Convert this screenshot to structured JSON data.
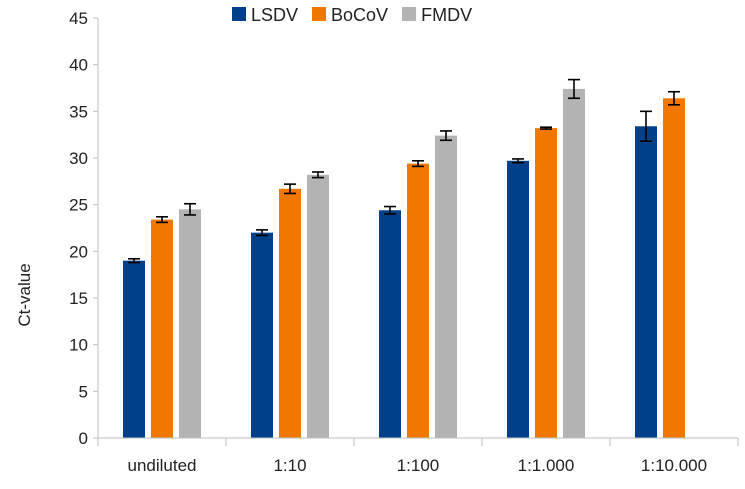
{
  "chart_data": {
    "type": "bar",
    "title": "",
    "xlabel": "",
    "ylabel": "Ct-value",
    "ylim": [
      0,
      45
    ],
    "yticks": [
      0,
      5,
      10,
      15,
      20,
      25,
      30,
      35,
      40,
      45
    ],
    "grid": false,
    "legend_position": "top",
    "categories": [
      "undiluted",
      "1:10",
      "1:100",
      "1:1.000",
      "1:10.000"
    ],
    "series": [
      {
        "name": "LSDV",
        "color": "#00408a",
        "values": [
          19.0,
          22.0,
          24.4,
          29.7,
          33.4
        ],
        "errors": [
          0.2,
          0.3,
          0.4,
          0.2,
          1.6
        ]
      },
      {
        "name": "BoCoV",
        "color": "#f07700",
        "values": [
          23.4,
          26.7,
          29.4,
          33.2,
          36.4
        ],
        "errors": [
          0.3,
          0.5,
          0.3,
          0.1,
          0.7
        ]
      },
      {
        "name": "FMDV",
        "color": "#b3b3b3",
        "values": [
          24.5,
          28.2,
          32.4,
          37.4,
          null
        ],
        "errors": [
          0.6,
          0.3,
          0.5,
          1.0,
          null
        ]
      }
    ]
  }
}
